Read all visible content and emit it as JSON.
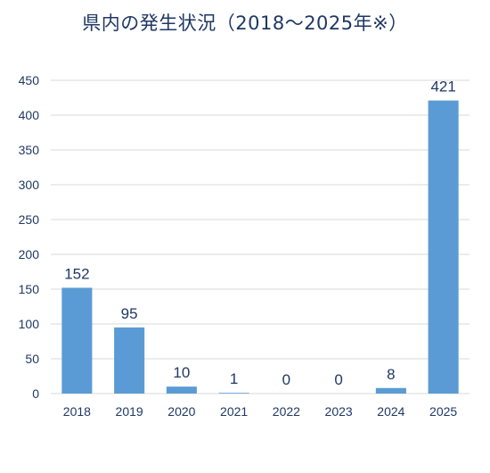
{
  "chart_data": {
    "type": "bar",
    "title": "県内の発生状況（2018～2025年※）",
    "categories": [
      "2018",
      "2019",
      "2020",
      "2021",
      "2022",
      "2023",
      "2024",
      "2025"
    ],
    "values": [
      152,
      95,
      10,
      1,
      0,
      0,
      8,
      421
    ],
    "data_labels": [
      "152",
      "95",
      "10",
      "1",
      "0",
      "0",
      "8",
      "421"
    ],
    "yticks": [
      "0",
      "50",
      "100",
      "150",
      "200",
      "250",
      "300",
      "350",
      "400",
      "450"
    ],
    "ylim": [
      0,
      450
    ],
    "xlabel": "",
    "ylabel": "",
    "grid": true,
    "colors": {
      "bar": "#5b9bd5",
      "text": "#1f3864",
      "grid": "#d9d9d9"
    }
  }
}
